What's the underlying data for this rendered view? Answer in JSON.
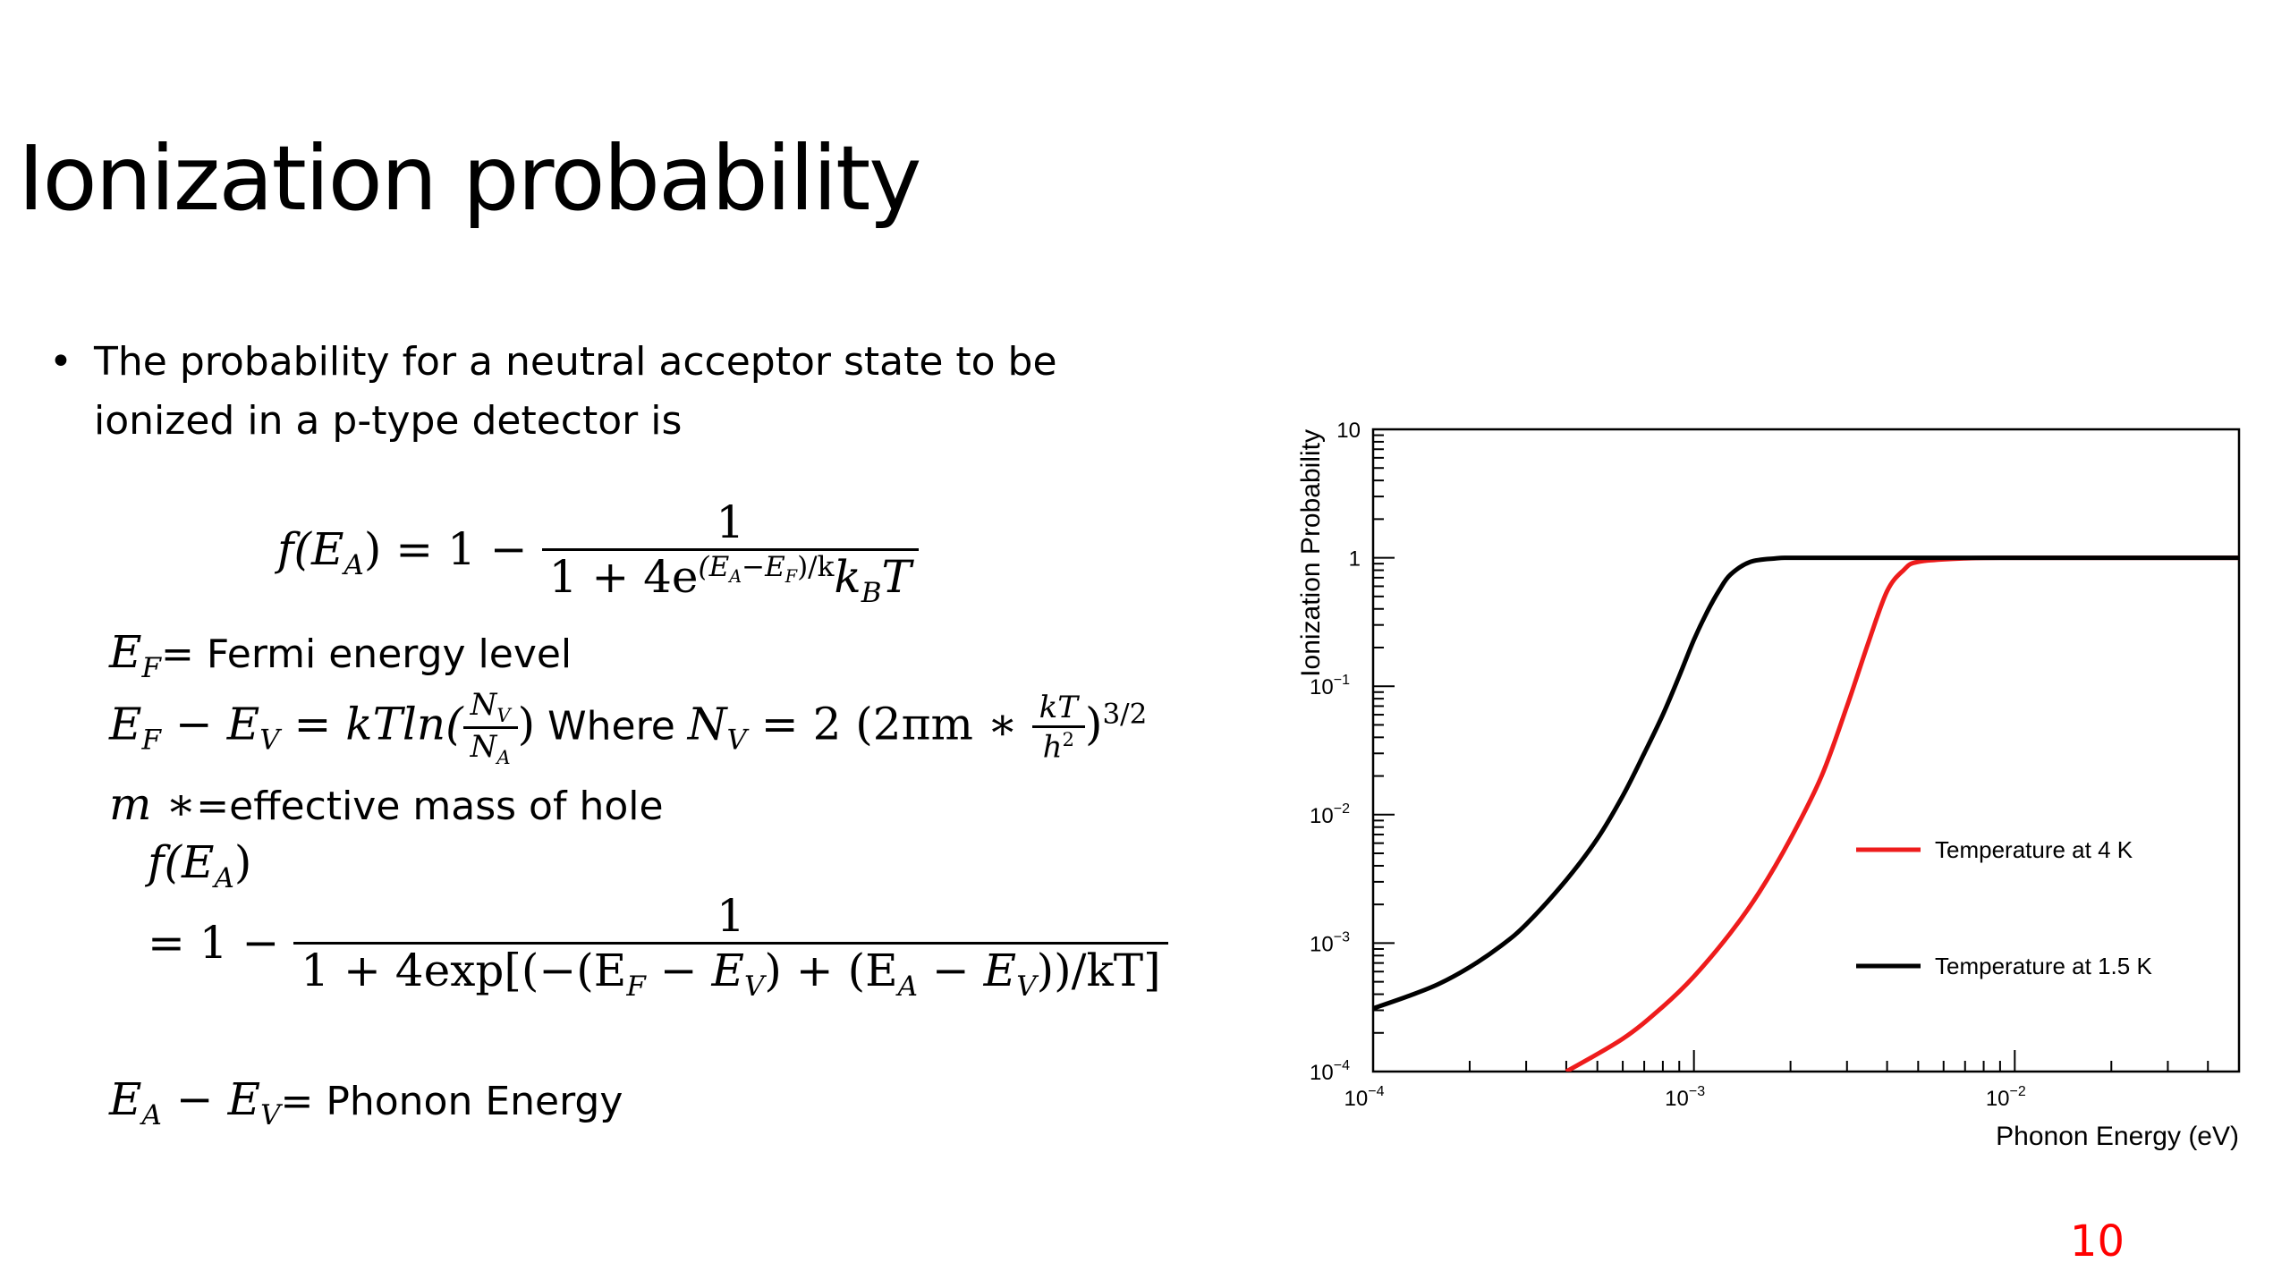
{
  "slide": {
    "title": "Ionization probability",
    "bullet_dot": "•",
    "bullet_text": "The probability for a neutral acceptor state to be ionized in a p-type detector is",
    "page_number": "10"
  },
  "formulas": {
    "f_lhs": "f(E",
    "f_lhs_sub": "A",
    "f_eq": ") = 1 −",
    "one": "1",
    "den1_prefix": "1 + 4e",
    "den1_exp": "(E",
    "den1_exp_subA": "A",
    "den1_exp_mid": "−E",
    "den1_exp_subF": "F",
    "den1_exp_end": ")/k",
    "den1_exp_subB": "B",
    "den1_exp_T": "T",
    "ef_sym": "E",
    "ef_sub": "F",
    "ef_text": "= Fermi energy level",
    "efev_lhs": "E",
    "efev_mid": " − E",
    "efev_eq": " = kTln(",
    "nv": "N",
    "nv_sub": "V",
    "na": "N",
    "na_sub": "A",
    "close": ")",
    "where_text": " Where ",
    "nv_eq": " = 2 (2πm ∗ ",
    "kt": "kT",
    "h2": "h",
    "h2_sup": "2",
    "pow": ")",
    "pow_sup": "3/2",
    "mstar": "m ∗",
    "mstar_text": "=effective mass of hole",
    "f2_lhs": "f(E",
    "f2_lhs_end": ")",
    "f2_eq": "= 1 −",
    "den2": "1 + 4exp[(−(E",
    "den2_a": " − E",
    "den2_b": ") + (E",
    "den2_c": " − E",
    "den2_d": "))/kT]",
    "ea": "E",
    "ea_mid": " − E",
    "ea_text": "= Phonon Energy",
    "sub_F": "F",
    "sub_V": "V",
    "sub_A": "A"
  },
  "chart_data": {
    "type": "line",
    "xlabel": "Phonon Energy (eV)",
    "ylabel": "Ionization Probability",
    "xscale": "log",
    "yscale": "log",
    "xlim": [
      0.0001,
      0.05
    ],
    "ylim": [
      0.0001,
      10
    ],
    "x_tick_labels": [
      {
        "base": "10",
        "exp": "−4",
        "value": 0.0001
      },
      {
        "base": "10",
        "exp": "−3",
        "value": 0.001
      },
      {
        "base": "10",
        "exp": "−2",
        "value": 0.01
      }
    ],
    "y_tick_labels": [
      {
        "base": "10",
        "exp": "−4",
        "value": 0.0001
      },
      {
        "base": "10",
        "exp": "−3",
        "value": 0.001
      },
      {
        "base": "10",
        "exp": "−2",
        "value": 0.01
      },
      {
        "base": "10",
        "exp": "−1",
        "value": 0.1
      },
      {
        "base": "1",
        "exp": "",
        "value": 1
      },
      {
        "base": "10",
        "exp": "",
        "value": 10
      }
    ],
    "legend_position": "right",
    "series": [
      {
        "name": "Temperature at 4 K",
        "color": "#ee1c1c",
        "x": [
          0.0004,
          0.0006,
          0.0008,
          0.001,
          0.0013,
          0.0016,
          0.002,
          0.0025,
          0.003,
          0.0035,
          0.004,
          0.0045,
          0.005,
          0.007,
          0.01,
          0.02,
          0.05
        ],
        "y": [
          0.0001,
          0.00018,
          0.00032,
          0.00055,
          0.0012,
          0.0025,
          0.0065,
          0.02,
          0.07,
          0.22,
          0.55,
          0.8,
          0.93,
          0.99,
          1,
          1,
          1
        ]
      },
      {
        "name": "Temperature at 1.5 K",
        "color": "#000000",
        "x": [
          0.0001,
          0.00013,
          0.00016,
          0.0002,
          0.00025,
          0.0003,
          0.0004,
          0.0005,
          0.0006,
          0.0007,
          0.0008,
          0.0009,
          0.001,
          0.0011,
          0.0012,
          0.0013,
          0.0015,
          0.0018,
          0.002,
          0.003,
          0.01,
          0.05
        ],
        "y": [
          0.00031,
          0.00039,
          0.00048,
          0.00065,
          0.00095,
          0.0014,
          0.0031,
          0.0065,
          0.014,
          0.03,
          0.06,
          0.12,
          0.23,
          0.38,
          0.56,
          0.74,
          0.93,
          0.99,
          1,
          1,
          1,
          1
        ]
      }
    ]
  }
}
